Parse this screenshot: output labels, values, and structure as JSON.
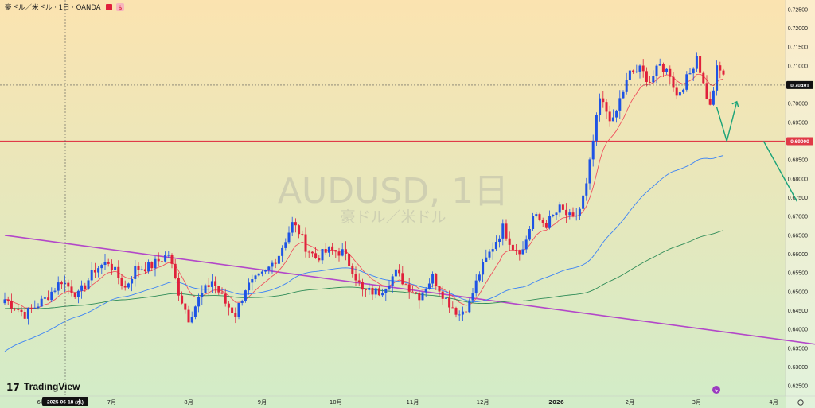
{
  "header": {
    "title": "豪ドル／米ドル · 1日 · OANDA"
  },
  "watermark": {
    "symbol": "AUDUSD, 1日",
    "name": "豪ドル／米ドル"
  },
  "brand": {
    "name": "TradingView"
  },
  "crosshair": {
    "date_label": "2025-06-18 (水)",
    "price_label": "0.70491",
    "price": 0.70491
  },
  "colors": {
    "up": "#1e53e5",
    "down": "#e0203b",
    "ema20": "#f0525f",
    "ma75": "#3b82f6",
    "ma200": "#2e8b57",
    "trendline": "#b347c9",
    "support": "#e03a48",
    "arrow": "#1aa378",
    "bg_top": "#fbe3b0",
    "bg_bottom": "#d2ecc8"
  },
  "chart_data": {
    "type": "candlestick",
    "y_axis": {
      "range": [
        0.6225,
        0.7275
      ],
      "ticks": [
        "0.72500",
        "0.72000",
        "0.71500",
        "0.71000",
        "0.70500",
        "0.70000",
        "0.69500",
        "0.69000",
        "0.68500",
        "0.68000",
        "0.67500",
        "0.67000",
        "0.66500",
        "0.66000",
        "0.65500",
        "0.65000",
        "0.64500",
        "0.64000",
        "0.63500",
        "0.63000",
        "0.62500"
      ]
    },
    "x_axis": {
      "ticks": [
        {
          "label": "6月",
          "index": 11
        },
        {
          "label": "7月",
          "index": 32
        },
        {
          "label": "8月",
          "index": 55
        },
        {
          "label": "9月",
          "index": 77
        },
        {
          "label": "10月",
          "index": 99
        },
        {
          "label": "11月",
          "index": 122
        },
        {
          "label": "12月",
          "index": 143
        },
        {
          "label": "2026",
          "index": 165
        },
        {
          "label": "2月",
          "index": 187
        },
        {
          "label": "3月",
          "index": 207
        },
        {
          "label": "4月",
          "index": 230
        }
      ]
    },
    "support_level": 0.69,
    "support_label": "0.69000",
    "trendline": {
      "start": {
        "index": 0,
        "price": 0.665
      },
      "end": {
        "index": 243,
        "price": 0.636
      }
    },
    "ma75_end": 0.6862,
    "ma200_end": 0.6663,
    "ohlc_keypoints": [
      [
        0,
        0.648
      ],
      [
        6,
        0.644
      ],
      [
        12,
        0.648
      ],
      [
        17,
        0.653
      ],
      [
        22,
        0.649
      ],
      [
        27,
        0.656
      ],
      [
        31,
        0.658
      ],
      [
        36,
        0.651
      ],
      [
        39,
        0.656
      ],
      [
        44,
        0.657
      ],
      [
        49,
        0.66
      ],
      [
        52,
        0.65
      ],
      [
        55,
        0.643
      ],
      [
        58,
        0.648
      ],
      [
        62,
        0.653
      ],
      [
        66,
        0.647
      ],
      [
        69,
        0.644
      ],
      [
        72,
        0.651
      ],
      [
        78,
        0.655
      ],
      [
        82,
        0.66
      ],
      [
        86,
        0.668
      ],
      [
        88,
        0.666
      ],
      [
        90,
        0.662
      ],
      [
        93,
        0.659
      ],
      [
        97,
        0.661
      ],
      [
        101,
        0.6605
      ],
      [
        104,
        0.656
      ],
      [
        107,
        0.65
      ],
      [
        112,
        0.65
      ],
      [
        117,
        0.655
      ],
      [
        120,
        0.652
      ],
      [
        124,
        0.649
      ],
      [
        128,
        0.654
      ],
      [
        132,
        0.648
      ],
      [
        136,
        0.644
      ],
      [
        139,
        0.647
      ],
      [
        142,
        0.655
      ],
      [
        146,
        0.662
      ],
      [
        149,
        0.667
      ],
      [
        152,
        0.662
      ],
      [
        155,
        0.661
      ],
      [
        158,
        0.67
      ],
      [
        162,
        0.668
      ],
      [
        166,
        0.672
      ],
      [
        170,
        0.669
      ],
      [
        172,
        0.672
      ],
      [
        174,
        0.678
      ],
      [
        176,
        0.69
      ],
      [
        178,
        0.701
      ],
      [
        180,
        0.698
      ],
      [
        182,
        0.695
      ],
      [
        184,
        0.701
      ],
      [
        187,
        0.708
      ],
      [
        190,
        0.709
      ],
      [
        193,
        0.706
      ],
      [
        196,
        0.71
      ],
      [
        199,
        0.708
      ],
      [
        201,
        0.702
      ],
      [
        203,
        0.705
      ],
      [
        205,
        0.708
      ],
      [
        207,
        0.713
      ],
      [
        209,
        0.705
      ],
      [
        211,
        0.699
      ],
      [
        213,
        0.709
      ],
      [
        215,
        0.708
      ]
    ],
    "forecast_arrows": [
      {
        "from": [
          213,
          0.699
        ],
        "to": [
          216,
          0.69
        ]
      },
      {
        "from": [
          216,
          0.69
        ],
        "to": [
          219,
          0.7005
        ]
      },
      {
        "from": [
          227,
          0.69
        ],
        "to": [
          237,
          0.674
        ]
      }
    ]
  }
}
